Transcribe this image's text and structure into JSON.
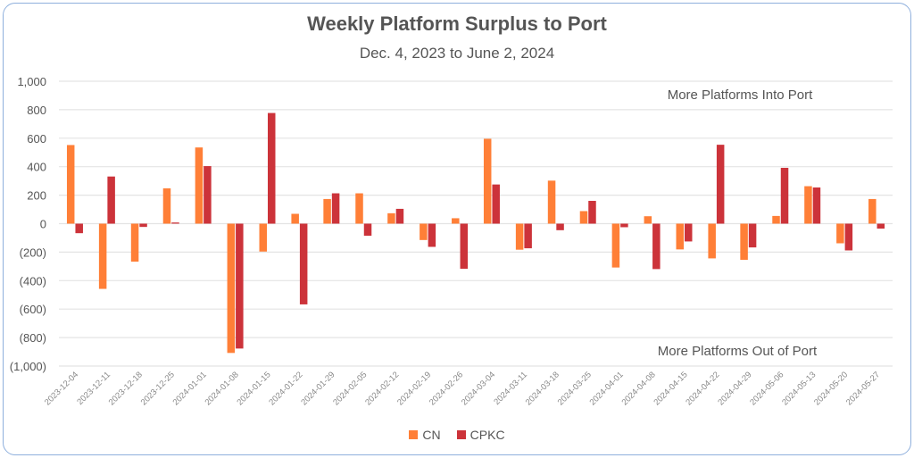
{
  "chart_data": {
    "type": "bar",
    "title": "Weekly Platform Surplus to Port",
    "subtitle": "Dec. 4, 2023 to June 2, 2024",
    "xlabel": "",
    "ylabel": "",
    "ylim": [
      -1000,
      1000
    ],
    "yticks": [
      1000,
      800,
      600,
      400,
      200,
      0,
      -200,
      -400,
      -600,
      -800,
      -1000
    ],
    "ytick_labels": [
      "1,000",
      "800",
      "600",
      "400",
      "200",
      "0",
      "(200)",
      "(400)",
      "(600)",
      "(800)",
      "(1,000)"
    ],
    "grid": true,
    "legend_position": "bottom",
    "annotations": [
      "More Platforms Into Port",
      "More Platforms Out of Port"
    ],
    "categories": [
      "2023-12-04",
      "2023-12-11",
      "2023-12-18",
      "2023-12-25",
      "2024-01-01",
      "2024-01-08",
      "2024-01-15",
      "2024-01-22",
      "2024-01-29",
      "2024-02-05",
      "2024-02-12",
      "2024-02-19",
      "2024-02-26",
      "2024-03-04",
      "2024-03-11",
      "2024-03-18",
      "2024-03-25",
      "2024-04-01",
      "2024-04-08",
      "2024-04-15",
      "2024-04-22",
      "2024-04-29",
      "2024-05-06",
      "2024-05-13",
      "2024-05-20",
      "2024-05-27"
    ],
    "series": [
      {
        "name": "CN",
        "color": "#ff7f37",
        "values": [
          552,
          -458,
          -267,
          248,
          535,
          -908,
          -196,
          69,
          173,
          213,
          73,
          -115,
          38,
          596,
          -183,
          302,
          88,
          -308,
          52,
          -181,
          -244,
          -254,
          54,
          263,
          -138,
          173
        ]
      },
      {
        "name": "CPKC",
        "color": "#cc333a",
        "values": [
          -67,
          331,
          -23,
          8,
          404,
          -877,
          777,
          -567,
          213,
          -85,
          104,
          -163,
          -317,
          275,
          -173,
          -46,
          160,
          -25,
          -319,
          -125,
          554,
          -167,
          392,
          254,
          -188,
          -35
        ]
      }
    ]
  }
}
